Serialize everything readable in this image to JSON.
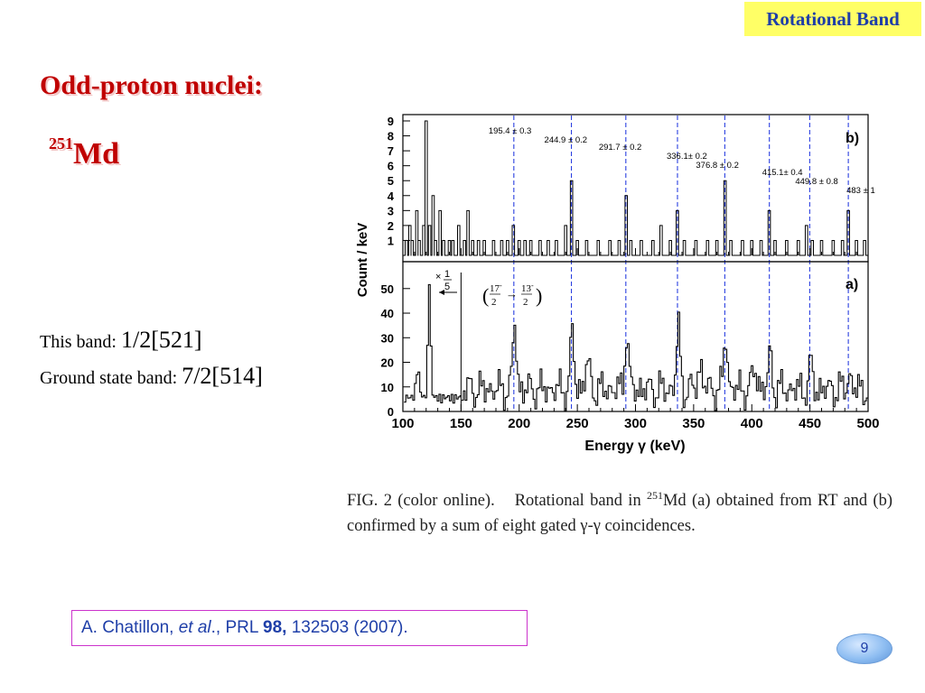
{
  "slide": {
    "tag": "Rotational Band",
    "heading": "Odd-proton nuclei:",
    "isotope_mass": "251",
    "isotope_symbol": "Md",
    "this_band_label": "This band:",
    "this_band_value": "1/2[521]",
    "ground_label": "Ground state band:",
    "ground_value": "7/2[514]",
    "caption_line1_a": "FIG. 2 (color online).",
    "caption_line1_b": "Rotational band in",
    "caption_mass": "251",
    "caption_rest": "Md (a) obtained from RT and (b) confirmed by a sum of eight gated γ-γ coincidences.",
    "ref_authors": "A. Chatillon, ",
    "ref_etal": "et al",
    "ref_mid": "., PRL ",
    "ref_vol": "98,",
    "ref_tail": " 132503 (2007).",
    "page_number": "9"
  },
  "chart_data": {
    "type": "line",
    "xlabel": "Energy γ (keV)",
    "ylabel": "Count / keV",
    "xlim": [
      100,
      500
    ],
    "x_ticks": [
      "100",
      "150",
      "200",
      "250",
      "300",
      "350",
      "400",
      "450",
      "500"
    ],
    "panels": [
      {
        "name": "b)",
        "ylim": [
          0,
          9
        ],
        "y_ticks": [
          "1",
          "2",
          "3",
          "4",
          "5",
          "6",
          "7",
          "8",
          "9"
        ],
        "spikes": [
          [
            103,
            1
          ],
          [
            106,
            2
          ],
          [
            108,
            1
          ],
          [
            112,
            3
          ],
          [
            114,
            1
          ],
          [
            118,
            2
          ],
          [
            120,
            9
          ],
          [
            123,
            2
          ],
          [
            126,
            4
          ],
          [
            128,
            1
          ],
          [
            132,
            3
          ],
          [
            135,
            1
          ],
          [
            140,
            1
          ],
          [
            143,
            1
          ],
          [
            148,
            2
          ],
          [
            153,
            1
          ],
          [
            156,
            3
          ],
          [
            160,
            1
          ],
          [
            165,
            1
          ],
          [
            170,
            1
          ],
          [
            178,
            1
          ],
          [
            185,
            1
          ],
          [
            190,
            1
          ],
          [
            195,
            2
          ],
          [
            200,
            1
          ],
          [
            205,
            1
          ],
          [
            210,
            1
          ],
          [
            218,
            1
          ],
          [
            225,
            1
          ],
          [
            232,
            1
          ],
          [
            240,
            2
          ],
          [
            245,
            5
          ],
          [
            250,
            1
          ],
          [
            258,
            1
          ],
          [
            268,
            1
          ],
          [
            278,
            1
          ],
          [
            286,
            1
          ],
          [
            292,
            4
          ],
          [
            296,
            1
          ],
          [
            305,
            1
          ],
          [
            315,
            1
          ],
          [
            322,
            2
          ],
          [
            330,
            1
          ],
          [
            336,
            3
          ],
          [
            342,
            1
          ],
          [
            352,
            1
          ],
          [
            362,
            1
          ],
          [
            370,
            1
          ],
          [
            377,
            5
          ],
          [
            382,
            1
          ],
          [
            392,
            1
          ],
          [
            400,
            1
          ],
          [
            408,
            1
          ],
          [
            415,
            3
          ],
          [
            420,
            1
          ],
          [
            430,
            1
          ],
          [
            440,
            1
          ],
          [
            447,
            2
          ],
          [
            452,
            1
          ],
          [
            460,
            1
          ],
          [
            470,
            1
          ],
          [
            478,
            1
          ],
          [
            483,
            3
          ],
          [
            490,
            1
          ],
          [
            497,
            1
          ]
        ],
        "peaks": [
          {
            "x": 195.4,
            "label": "195.4 ± 0.3"
          },
          {
            "x": 244.9,
            "label": "244.9 ± 0.2"
          },
          {
            "x": 291.7,
            "label": "291.7 ± 0.2"
          },
          {
            "x": 336.1,
            "label": "336.1± 0.2"
          },
          {
            "x": 376.8,
            "label": "376.8 ± 0.2"
          },
          {
            "x": 415.1,
            "label": "415.1± 0.4"
          },
          {
            "x": 449.8,
            "label": "449.8 ± 0.8"
          },
          {
            "x": 483,
            "label": "483 ± 1"
          }
        ]
      },
      {
        "name": "a)",
        "ylim": [
          0,
          58
        ],
        "y_ticks": [
          "0",
          "10",
          "20",
          "30",
          "40",
          "50"
        ],
        "scale_note_top": "1",
        "scale_note_times": "×",
        "scale_note_bottom": "5",
        "transition_open": "(",
        "transition_from_num": "17",
        "transition_from_sup": "-",
        "transition_from_den": "2",
        "transition_arrow": "→",
        "transition_to_num": "13",
        "transition_to_sup": "-",
        "transition_to_den": "2",
        "transition_close": ")"
      }
    ]
  }
}
